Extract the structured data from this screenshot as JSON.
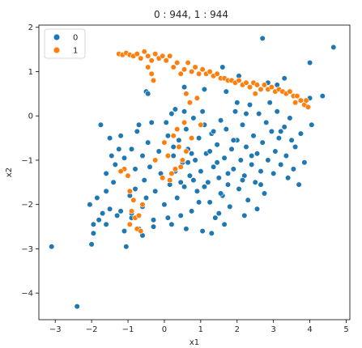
{
  "chart_data": {
    "type": "scatter",
    "title": "0 : 944,    1 : 944",
    "xlabel": "x1",
    "ylabel": "x2",
    "xlim": [
      -3.45,
      5.1
    ],
    "ylim": [
      -4.6,
      2.05
    ],
    "xticks": [
      -3,
      -2,
      -1,
      0,
      1,
      2,
      3,
      4,
      5
    ],
    "yticks": [
      -4,
      -3,
      -2,
      -1,
      0,
      1,
      2
    ],
    "grid": false,
    "legend": {
      "placement": "top-left",
      "entries": [
        "0",
        "1"
      ]
    },
    "series": [
      {
        "name": "0",
        "color": "#1f77b4",
        "points": [
          [
            -3.1,
            -2.95
          ],
          [
            -2.4,
            -4.3
          ],
          [
            -2.0,
            -2.9
          ],
          [
            -1.95,
            -2.65
          ],
          [
            -2.05,
            -2.0
          ],
          [
            -1.8,
            -2.35
          ],
          [
            -1.7,
            -2.2
          ],
          [
            -1.85,
            -1.85
          ],
          [
            -1.6,
            -2.45
          ],
          [
            -1.5,
            -2.1
          ],
          [
            -1.4,
            -1.5
          ],
          [
            -1.2,
            -2.15
          ],
          [
            -1.1,
            -2.6
          ],
          [
            -1.05,
            -2.95
          ],
          [
            -0.95,
            -1.8
          ],
          [
            -0.9,
            -2.3
          ],
          [
            -0.8,
            -1.65
          ],
          [
            -0.7,
            -2.55
          ],
          [
            -0.6,
            -2.05
          ],
          [
            -0.5,
            -1.85
          ],
          [
            -1.75,
            -0.2
          ],
          [
            -1.5,
            -0.5
          ],
          [
            -1.45,
            -0.9
          ],
          [
            -1.6,
            -1.3
          ],
          [
            -1.35,
            -1.1
          ],
          [
            -1.2,
            -0.45
          ],
          [
            -1.1,
            -0.95
          ],
          [
            -1.0,
            -1.35
          ],
          [
            -0.9,
            -0.75
          ],
          [
            -0.8,
            -1.2
          ],
          [
            -0.75,
            -0.35
          ],
          [
            -0.6,
            -0.9
          ],
          [
            -0.55,
            -1.45
          ],
          [
            -0.45,
            -0.6
          ],
          [
            -0.4,
            -1.15
          ],
          [
            -0.3,
            -2.35
          ],
          [
            -0.25,
            -1.7
          ],
          [
            -0.15,
            -0.8
          ],
          [
            -0.1,
            -1.3
          ],
          [
            0.0,
            -2.0
          ],
          [
            0.05,
            -0.15
          ],
          [
            0.1,
            -0.45
          ],
          [
            0.15,
            -1.55
          ],
          [
            0.2,
            -2.45
          ],
          [
            0.25,
            -0.9
          ],
          [
            0.3,
            -1.25
          ],
          [
            0.35,
            -1.85
          ],
          [
            0.4,
            -0.55
          ],
          [
            0.45,
            -2.25
          ],
          [
            0.5,
            -1.05
          ],
          [
            -0.5,
            0.55
          ],
          [
            0.3,
            0.15
          ],
          [
            0.55,
            -1.6
          ],
          [
            0.6,
            -0.3
          ],
          [
            0.65,
            -0.75
          ],
          [
            0.7,
            -1.35
          ],
          [
            0.75,
            -2.15
          ],
          [
            0.8,
            -0.05
          ],
          [
            0.85,
            -1.0
          ],
          [
            0.9,
            -1.7
          ],
          [
            0.95,
            -0.5
          ],
          [
            1.0,
            -1.25
          ],
          [
            1.05,
            -2.6
          ],
          [
            1.1,
            -0.2
          ],
          [
            1.15,
            -0.85
          ],
          [
            1.2,
            -1.5
          ],
          [
            1.25,
            -1.95
          ],
          [
            1.3,
            -0.4
          ],
          [
            1.35,
            -1.15
          ],
          [
            1.4,
            -2.3
          ],
          [
            1.45,
            -0.65
          ],
          [
            1.5,
            -1.4
          ],
          [
            1.55,
            -0.1
          ],
          [
            1.6,
            -1.8
          ],
          [
            1.65,
            -0.95
          ],
          [
            1.7,
            -0.3
          ],
          [
            1.75,
            -1.55
          ],
          [
            1.8,
            -2.05
          ],
          [
            1.85,
            -0.75
          ],
          [
            1.9,
            -1.2
          ],
          [
            1.95,
            0.1
          ],
          [
            2.0,
            -0.55
          ],
          [
            2.05,
            -1.65
          ],
          [
            2.1,
            -1.0
          ],
          [
            2.15,
            -0.2
          ],
          [
            2.2,
            -1.35
          ],
          [
            2.25,
            -0.7
          ],
          [
            2.3,
            -1.9
          ],
          [
            2.35,
            0.25
          ],
          [
            2.4,
            -1.1
          ],
          [
            2.45,
            -0.45
          ],
          [
            2.5,
            -1.5
          ],
          [
            2.55,
            -0.85
          ],
          [
            2.6,
            0.05
          ],
          [
            2.65,
            -1.25
          ],
          [
            2.7,
            -0.6
          ],
          [
            2.75,
            -1.75
          ],
          [
            2.8,
            -0.15
          ],
          [
            2.85,
            -1.0
          ],
          [
            2.9,
            0.3
          ],
          [
            2.95,
            -0.35
          ],
          [
            3.0,
            -1.3
          ],
          [
            3.05,
            -0.8
          ],
          [
            3.1,
            0.1
          ],
          [
            3.15,
            -0.5
          ],
          [
            3.2,
            -1.1
          ],
          [
            3.3,
            -0.25
          ],
          [
            3.35,
            -0.9
          ],
          [
            3.4,
            -1.4
          ],
          [
            3.5,
            -0.55
          ],
          [
            3.55,
            -1.2
          ],
          [
            3.6,
            -0.7
          ],
          [
            3.7,
            -1.55
          ],
          [
            3.75,
            -0.4
          ],
          [
            3.85,
            -1.05
          ],
          [
            4.0,
            0.4
          ],
          [
            4.05,
            -0.2
          ],
          [
            4.35,
            0.45
          ],
          [
            4.65,
            1.55
          ],
          [
            4.0,
            1.2
          ],
          [
            2.7,
            1.75
          ],
          [
            1.6,
            1.1
          ],
          [
            1.1,
            0.6
          ],
          [
            0.55,
            0.65
          ],
          [
            0.9,
            0.4
          ],
          [
            -0.45,
            0.5
          ],
          [
            2.0,
            0.3
          ],
          [
            2.85,
            0.75
          ],
          [
            3.3,
            0.85
          ],
          [
            2.05,
            0.9
          ],
          [
            3.1,
            0.7
          ],
          [
            1.7,
            0.55
          ],
          [
            0.2,
            0.05
          ],
          [
            -0.7,
            -0.2
          ],
          [
            -1.25,
            -0.75
          ],
          [
            -0.35,
            -0.15
          ],
          [
            0.55,
            0.1
          ],
          [
            -1.6,
            -1.7
          ],
          [
            -1.3,
            -2.25
          ],
          [
            -1.95,
            -2.45
          ],
          [
            0.6,
            -2.55
          ],
          [
            1.3,
            -2.65
          ],
          [
            1.5,
            -2.2
          ],
          [
            2.2,
            -2.25
          ],
          [
            2.55,
            -2.1
          ],
          [
            0.1,
            -2.3
          ],
          [
            -0.3,
            -2.5
          ],
          [
            -0.6,
            -2.7
          ],
          [
            -0.9,
            -2.2
          ],
          [
            1.65,
            -2.45
          ],
          [
            0.8,
            -1.45
          ],
          [
            1.25,
            -0.8
          ],
          [
            1.45,
            -1.05
          ],
          [
            1.1,
            -1.6
          ],
          [
            0.65,
            -1.05
          ],
          [
            1.9,
            -0.55
          ],
          [
            2.15,
            -1.45
          ],
          [
            1.55,
            -1.75
          ],
          [
            0.95,
            -1.95
          ],
          [
            1.35,
            -0.35
          ],
          [
            2.4,
            -0.9
          ],
          [
            1.75,
            -1.3
          ],
          [
            0.45,
            -1.5
          ],
          [
            0.25,
            -0.7
          ],
          [
            2.65,
            -1.55
          ],
          [
            3.45,
            -0.05
          ],
          [
            3.2,
            -0.35
          ],
          [
            2.25,
            0.05
          ],
          [
            1.05,
            0.1
          ],
          [
            0.75,
            -0.85
          ]
        ]
      },
      {
        "name": "1",
        "color": "#ff7f0e",
        "points": [
          [
            -1.25,
            1.4
          ],
          [
            -1.15,
            1.38
          ],
          [
            -1.05,
            1.42
          ],
          [
            -0.95,
            1.38
          ],
          [
            -0.85,
            1.35
          ],
          [
            -0.75,
            1.4
          ],
          [
            -0.65,
            1.3
          ],
          [
            -0.55,
            1.45
          ],
          [
            -0.45,
            1.35
          ],
          [
            -0.35,
            1.25
          ],
          [
            -0.25,
            1.4
          ],
          [
            -0.15,
            1.3
          ],
          [
            -0.05,
            1.35
          ],
          [
            0.05,
            1.25
          ],
          [
            0.15,
            1.35
          ],
          [
            0.25,
            1.1
          ],
          [
            0.35,
            1.2
          ],
          [
            0.45,
            0.95
          ],
          [
            0.55,
            1.05
          ],
          [
            0.65,
            1.2
          ],
          [
            0.75,
            1.0
          ],
          [
            0.85,
            1.1
          ],
          [
            0.95,
            0.95
          ],
          [
            1.05,
            1.05
          ],
          [
            1.15,
            0.95
          ],
          [
            1.25,
            1.0
          ],
          [
            1.35,
            0.9
          ],
          [
            1.45,
            0.95
          ],
          [
            1.55,
            0.85
          ],
          [
            1.65,
            0.85
          ],
          [
            1.75,
            0.8
          ],
          [
            1.85,
            0.8
          ],
          [
            1.95,
            0.75
          ],
          [
            2.05,
            0.8
          ],
          [
            2.15,
            0.7
          ],
          [
            2.25,
            0.75
          ],
          [
            2.35,
            0.65
          ],
          [
            2.45,
            0.75
          ],
          [
            2.55,
            0.7
          ],
          [
            2.65,
            0.6
          ],
          [
            2.75,
            0.7
          ],
          [
            2.85,
            0.6
          ],
          [
            2.95,
            0.65
          ],
          [
            3.05,
            0.55
          ],
          [
            3.15,
            0.6
          ],
          [
            3.25,
            0.55
          ],
          [
            3.35,
            0.5
          ],
          [
            3.45,
            0.55
          ],
          [
            3.55,
            0.45
          ],
          [
            3.65,
            0.45
          ],
          [
            3.75,
            0.35
          ],
          [
            3.85,
            0.25
          ],
          [
            3.95,
            0.2
          ],
          [
            -0.35,
            0.95
          ],
          [
            -0.3,
            0.8
          ],
          [
            -0.45,
            1.1
          ],
          [
            0.6,
            0.5
          ],
          [
            0.9,
            0.4
          ],
          [
            1.0,
            -0.2
          ],
          [
            0.75,
            -0.5
          ],
          [
            0.6,
            -0.8
          ],
          [
            0.5,
            -1.0
          ],
          [
            0.4,
            -0.7
          ],
          [
            0.3,
            -1.2
          ],
          [
            0.2,
            -1.3
          ],
          [
            0.1,
            -0.9
          ],
          [
            -0.05,
            -1.4
          ],
          [
            0.0,
            -0.6
          ],
          [
            0.35,
            -0.3
          ],
          [
            0.55,
            -0.15
          ],
          [
            -1.0,
            -1.35
          ],
          [
            -1.1,
            -1.2
          ],
          [
            -0.95,
            -1.7
          ],
          [
            -0.85,
            -1.9
          ],
          [
            -0.9,
            -2.15
          ],
          [
            -0.8,
            -2.3
          ],
          [
            -0.75,
            -2.55
          ],
          [
            -0.7,
            -2.25
          ],
          [
            -0.65,
            -2.6
          ],
          [
            -0.95,
            -2.45
          ],
          [
            -0.6,
            -2.0
          ],
          [
            -1.2,
            -1.25
          ],
          [
            0.15,
            -1.45
          ],
          [
            -0.25,
            -1.0
          ],
          [
            0.45,
            -1.15
          ],
          [
            0.25,
            -0.45
          ],
          [
            0.7,
            0.3
          ],
          [
            3.6,
            0.3
          ],
          [
            3.9,
            0.35
          ],
          [
            2.5,
            0.5
          ]
        ]
      }
    ]
  }
}
